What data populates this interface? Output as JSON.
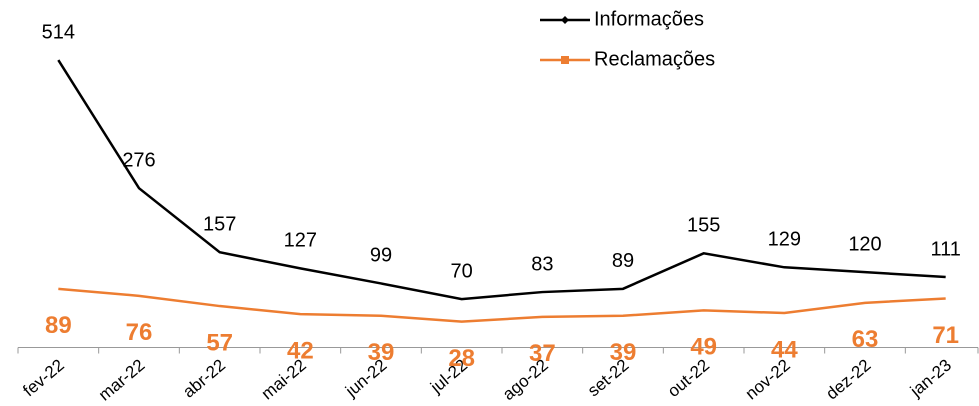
{
  "chart_data": {
    "type": "line",
    "categories": [
      "fev-22",
      "mar-22",
      "abr-22",
      "mai-22",
      "jun-22",
      "jul-22",
      "ago-22",
      "set-22",
      "out-22",
      "nov-22",
      "dez-22",
      "jan-23"
    ],
    "series": [
      {
        "name": "Informações",
        "color": "#000000",
        "values": [
          514,
          276,
          157,
          127,
          99,
          70,
          83,
          89,
          155,
          129,
          120,
          111
        ]
      },
      {
        "name": "Reclamações",
        "color": "#ed7d31",
        "values": [
          89,
          76,
          57,
          42,
          39,
          28,
          37,
          39,
          49,
          44,
          63,
          71
        ]
      }
    ],
    "ylim": [
      -20,
      550
    ],
    "legend": "top-right"
  }
}
